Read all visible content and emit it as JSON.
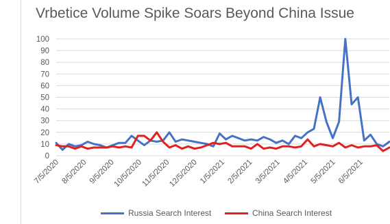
{
  "chart_data": {
    "type": "line",
    "title": "Vrbetice Volume Spike Soars Beyond China Issue",
    "xlabel": "",
    "ylabel": "",
    "ylim": [
      0,
      100
    ],
    "yticks": [
      0,
      10,
      20,
      30,
      40,
      50,
      60,
      70,
      80,
      90,
      100
    ],
    "xtick_labels": [
      "7/5/2020",
      "8/5/2020",
      "9/5/2020",
      "10/5/2020",
      "11/5/2020",
      "12/5/2020",
      "1/5/2021",
      "2/5/2021",
      "3/5/2021",
      "4/5/2021",
      "5/5/2021",
      "6/5/2021"
    ],
    "grid": true,
    "legend_position": "bottom",
    "series": [
      {
        "name": "Russia Search Interest",
        "color": "#4472c4",
        "values": [
          11,
          5,
          10,
          8,
          9,
          12,
          10,
          9,
          7,
          9,
          11,
          11,
          17,
          13,
          9,
          13,
          12,
          13,
          20,
          12,
          14,
          13,
          12,
          11,
          10,
          8,
          19,
          14,
          17,
          15,
          13,
          14,
          13,
          16,
          14,
          11,
          13,
          10,
          17,
          15,
          20,
          23,
          50,
          29,
          15,
          29,
          100,
          44,
          50,
          13,
          18,
          10,
          8,
          12
        ]
      },
      {
        "name": "China Search Interest",
        "color": "#e0211f",
        "values": [
          9,
          8,
          8,
          6,
          8,
          6,
          7,
          7,
          7,
          8,
          7,
          8,
          7,
          17,
          17,
          13,
          20,
          12,
          7,
          9,
          6,
          8,
          6,
          7,
          9,
          11,
          10,
          11,
          8,
          8,
          8,
          6,
          10,
          6,
          7,
          6,
          8,
          8,
          7,
          8,
          14,
          8,
          10,
          9,
          8,
          11,
          7,
          9,
          7,
          8,
          8,
          9,
          4,
          7
        ]
      }
    ]
  }
}
